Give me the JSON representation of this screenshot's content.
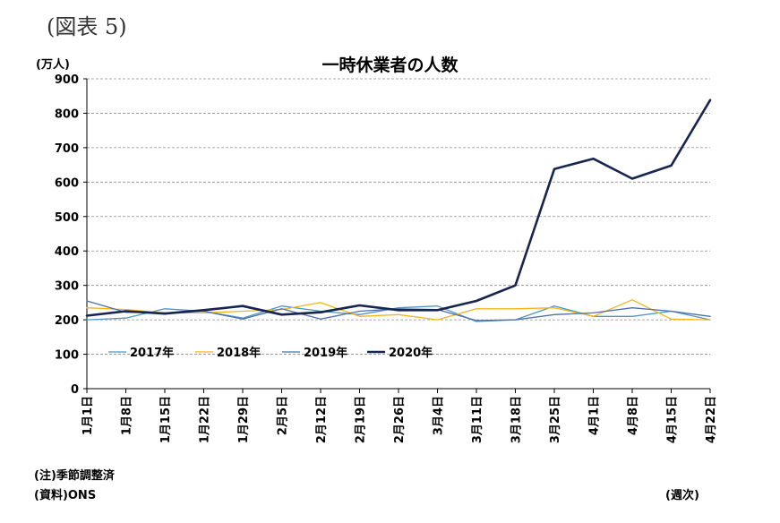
{
  "header": {
    "figure_label": "(図表 5)",
    "unit": "(万人)"
  },
  "footer": {
    "note": "(注)季節調整済",
    "source": "(資料)ONS",
    "x_unit": "(週次)"
  },
  "chart_data": {
    "type": "line",
    "title": "一時休業者の人数",
    "xlabel": "",
    "ylabel": "",
    "ylim": [
      0,
      900
    ],
    "yticks": [
      0,
      100,
      200,
      300,
      400,
      500,
      600,
      700,
      800,
      900
    ],
    "grid": true,
    "legend_position": "lower-left",
    "categories": [
      "1月1日",
      "1月8日",
      "1月15日",
      "1月22日",
      "1月29日",
      "2月5日",
      "2月12日",
      "2月19日",
      "2月26日",
      "3月4日",
      "3月11日",
      "3月18日",
      "3月25日",
      "4月1日",
      "4月8日",
      "4月15日",
      "4月22日"
    ],
    "series": [
      {
        "name": "2017年",
        "color": "#4f95c8",
        "width": 1.3,
        "values": [
          200,
          205,
          232,
          225,
          205,
          240,
          225,
          215,
          235,
          240,
          195,
          200,
          240,
          210,
          210,
          225,
          200
        ]
      },
      {
        "name": "2018年",
        "color": "#f5b41a",
        "width": 1.3,
        "values": [
          235,
          230,
          220,
          220,
          225,
          230,
          250,
          210,
          215,
          200,
          232,
          232,
          235,
          210,
          258,
          202,
          200
        ]
      },
      {
        "name": "2019年",
        "color": "#4f6fa8",
        "width": 1.3,
        "values": [
          255,
          222,
          220,
          225,
          202,
          232,
          202,
          225,
          232,
          230,
          198,
          200,
          215,
          220,
          235,
          225,
          210
        ]
      },
      {
        "name": "2020年",
        "color": "#17254f",
        "width": 2.6,
        "values": [
          212,
          225,
          218,
          228,
          240,
          215,
          222,
          242,
          228,
          228,
          255,
          300,
          638,
          668,
          610,
          648,
          838
        ]
      }
    ]
  }
}
